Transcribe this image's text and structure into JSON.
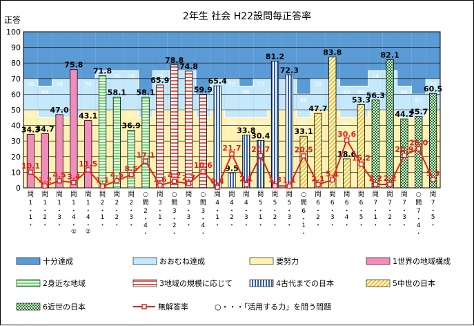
{
  "chart_data": {
    "type": "bar",
    "title": "2年生  社会        H22設問毎正答率",
    "ylabel": "正答",
    "ylim": [
      0,
      100
    ],
    "yticks": [
      0,
      10,
      20,
      30,
      40,
      50,
      60,
      70,
      80,
      90,
      100
    ],
    "grid": true,
    "categories": [
      {
        "label": [
          "問",
          "1",
          "(",
          "1",
          ")"
        ]
      },
      {
        "label": [
          "問",
          "1",
          "(",
          "2",
          ")"
        ]
      },
      {
        "label": [
          "問",
          "1",
          "(",
          "3",
          ")"
        ]
      },
      {
        "label": [
          "問",
          "1",
          "(",
          "4",
          ")",
          "①"
        ]
      },
      {
        "label": [
          "問",
          "1",
          "(",
          "4",
          ")",
          "②"
        ]
      },
      {
        "label": [
          "問",
          "2",
          "(",
          "1",
          ")"
        ]
      },
      {
        "label": [
          "問",
          "2",
          "(",
          "2",
          ")"
        ]
      },
      {
        "label": [
          "問",
          "2",
          "(",
          "3",
          ")"
        ]
      },
      {
        "label": [
          "○",
          "問",
          "2",
          "(",
          "4",
          ")"
        ]
      },
      {
        "label": [
          "問",
          "3",
          "(",
          "1",
          ")"
        ]
      },
      {
        "label": [
          "○",
          "問",
          "3",
          "(",
          "2",
          ")"
        ]
      },
      {
        "label": [
          "問",
          "3",
          "(",
          "3",
          ")"
        ]
      },
      {
        "label": [
          "○",
          "問",
          "3",
          "(",
          "4",
          ")"
        ]
      },
      {
        "label": [
          "問",
          "4",
          "(",
          "1",
          ")"
        ]
      },
      {
        "label": [
          "問",
          "4",
          "(",
          "2",
          ")"
        ]
      },
      {
        "label": [
          "問",
          "4",
          "(",
          "3",
          ")"
        ]
      },
      {
        "label": [
          "問",
          "5",
          "(",
          "1",
          ")"
        ]
      },
      {
        "label": [
          "問",
          "5",
          "(",
          "2",
          ")"
        ]
      },
      {
        "label": [
          "問",
          "5",
          "(",
          "3",
          ")"
        ]
      },
      {
        "label": [
          "○",
          "問",
          "6",
          "(",
          "1",
          ")"
        ]
      },
      {
        "label": [
          "問",
          "6",
          "(",
          "2",
          ")"
        ]
      },
      {
        "label": [
          "問",
          "6",
          "(",
          "3",
          ")"
        ]
      },
      {
        "label": [
          "問",
          "6",
          "(",
          "4",
          ")"
        ]
      },
      {
        "label": [
          "問",
          "6",
          "(",
          "5",
          ")"
        ]
      },
      {
        "label": [
          "問",
          "7",
          "(",
          "1",
          ")"
        ]
      },
      {
        "label": [
          "問",
          "7",
          "(",
          "2",
          ")"
        ]
      },
      {
        "label": [
          "問",
          "7",
          "(",
          "3",
          ")"
        ]
      },
      {
        "label": [
          "○",
          "問",
          "7",
          "(",
          "4",
          ")"
        ]
      },
      {
        "label": [
          "問",
          "7",
          "(",
          "5",
          ")"
        ]
      }
    ],
    "band_levels": {
      "youdoryoku": [
        50,
        45,
        45,
        45,
        50,
        50,
        50,
        50,
        45,
        50,
        50,
        50,
        45,
        50,
        45,
        45,
        45,
        50,
        50,
        45,
        50,
        50,
        45,
        45,
        50,
        50,
        45,
        45,
        50
      ],
      "ooyoso": [
        70,
        65,
        70,
        70,
        70,
        75,
        75,
        75,
        60,
        75,
        75,
        75,
        60,
        70,
        70,
        65,
        70,
        70,
        70,
        60,
        70,
        70,
        65,
        65,
        75,
        75,
        65,
        60,
        70
      ],
      "band_labels_youdoryoku": [
        "50",
        "45",
        "45",
        "45",
        "50",
        "50",
        "50",
        "50",
        "45",
        "50",
        "50",
        "50",
        "45",
        "50",
        "45",
        "45",
        "45",
        "50",
        "50",
        "45",
        "50",
        "50",
        "45",
        "45",
        "50",
        "50",
        "45",
        "45",
        "50"
      ],
      "band_labels_ooyoso": [
        "70",
        "65",
        "70",
        "70",
        "70",
        "75",
        "75",
        "75",
        "60",
        "75",
        "75",
        "75",
        "60",
        "70",
        "70",
        "65",
        "70",
        "70",
        "70",
        "60",
        "70",
        "70",
        "65",
        "65",
        "75",
        "75",
        "65",
        "60",
        "70"
      ]
    },
    "bars": [
      {
        "value": 34.3,
        "label": "34.3",
        "group": 1
      },
      {
        "value": 34.7,
        "label": "34.7",
        "group": 1
      },
      {
        "value": 47.0,
        "label": "47.0",
        "group": 1
      },
      {
        "value": 75.8,
        "label": "75.8",
        "group": 1
      },
      {
        "value": 43.1,
        "label": "43.1",
        "group": 1
      },
      {
        "value": 71.8,
        "label": "71.8",
        "group": 2
      },
      {
        "value": 58.1,
        "label": "58.1",
        "group": 2
      },
      {
        "value": 36.9,
        "label": "36.9",
        "group": 2
      },
      {
        "value": 58.1,
        "label": "58.1",
        "group": 2
      },
      {
        "value": 65.9,
        "label": "65.9",
        "group": 3
      },
      {
        "value": 78.8,
        "label": "78.8",
        "group": 3
      },
      {
        "value": 74.8,
        "label": "74.8",
        "group": 3
      },
      {
        "value": 59.9,
        "label": "59.9",
        "group": 3
      },
      {
        "value": 65.4,
        "label": "65.4",
        "group": 4
      },
      {
        "value": 9.5,
        "label": "9.5",
        "group": 4
      },
      {
        "value": 33.8,
        "label": "33.8",
        "group": 4
      },
      {
        "value": 30.4,
        "label": "30.4",
        "group": 4
      },
      {
        "value": 81.2,
        "label": "81.2",
        "group": 4
      },
      {
        "value": 72.3,
        "label": "72.3",
        "group": 4
      },
      {
        "value": 33.1,
        "label": "33.1",
        "group": 5
      },
      {
        "value": 47.7,
        "label": "47.7",
        "group": 5
      },
      {
        "value": 83.8,
        "label": "83.8",
        "group": 5
      },
      {
        "value": 18.6,
        "label": "18.6",
        "group": 5
      },
      {
        "value": 53.3,
        "label": "53.3",
        "group": 5
      },
      {
        "value": 56.3,
        "label": "56.3",
        "group": 6
      },
      {
        "value": 82.1,
        "label": "82.1",
        "group": 6
      },
      {
        "value": 44.2,
        "label": "44.2",
        "group": 6
      },
      {
        "value": 45.7,
        "label": "45.7",
        "group": 6
      },
      {
        "value": 60.5,
        "label": "60.5",
        "group": 6
      }
    ],
    "no_answer": {
      "values": [
        10.1,
        1.2,
        4.5,
        3.4,
        11.5,
        1.1,
        4.5,
        8.5,
        17.1,
        1.6,
        4.2,
        2.7,
        10.6,
        0.4,
        21.7,
        2.1,
        20.7,
        1.3,
        1.1,
        20.5,
        2.1,
        5.1,
        30.6,
        15.2,
        2.2,
        2.2,
        20.9,
        25.0,
        5.3
      ],
      "labels": [
        "10.1",
        "1.2",
        "4.5",
        "3.4",
        "11.5",
        "1.1",
        "4.5",
        "8.5",
        "17.1",
        "1.6",
        "4.2",
        "2.7",
        "10.6",
        "0.4",
        "21.7",
        "2.1",
        "20.7",
        "1.3",
        "1.1",
        "20.5",
        "2.1",
        "5.1",
        "30.6",
        "15.2",
        "2.2",
        "2.2",
        "20.9",
        "25.0",
        "5.3"
      ]
    },
    "colors": {
      "juubun": "#5b9bd5",
      "ooyoso": "#c5e8fb",
      "youdoryoku": "#fff2b3",
      "band_text": "#ffffff",
      "line": "#e0231b",
      "bar_outline": "#000000",
      "g1": "#f28cba",
      "g2_fill": "#6fdc6f",
      "g3_stripe": "#e8574a",
      "g4_fill": "#2e5fa8",
      "g5_stripe": "#f0c020",
      "g6_fill": "#0b7a18"
    },
    "legend": {
      "placement": "bottom",
      "items": [
        {
          "key": "juubun",
          "label": "十分達成"
        },
        {
          "key": "ooyoso",
          "label": "おおむね達成"
        },
        {
          "key": "youdoryoku",
          "label": "要努力"
        },
        {
          "key": "g1",
          "label": "1世界の地域構成"
        },
        {
          "key": "g2",
          "label": "2身近な地域"
        },
        {
          "key": "g3",
          "label": "3地域の規模に応じて"
        },
        {
          "key": "g4",
          "label": "4古代までの日本"
        },
        {
          "key": "g5",
          "label": "5中世の日本"
        },
        {
          "key": "g6",
          "label": "6近世の日本"
        },
        {
          "key": "line",
          "label": "無解答率"
        },
        {
          "key": "note",
          "label": "○・・・「活用する力」を問う問題"
        }
      ]
    }
  }
}
